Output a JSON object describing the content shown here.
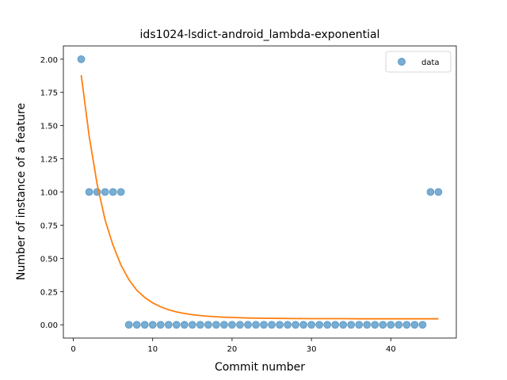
{
  "chart_data": {
    "type": "scatter",
    "title": "ids1024-lsdict-android_lambda-exponential",
    "xlabel": "Commit number",
    "ylabel": "Number of instance of a feature",
    "xlim": [
      -1.25,
      48.25
    ],
    "ylim": [
      -0.1,
      2.1
    ],
    "xticks": [
      0,
      10,
      20,
      30,
      40
    ],
    "yticks": [
      0.0,
      0.25,
      0.5,
      0.75,
      1.0,
      1.25,
      1.5,
      1.75,
      2.0
    ],
    "ytick_labels": [
      "0.00",
      "0.25",
      "0.50",
      "0.75",
      "1.00",
      "1.25",
      "1.50",
      "1.75",
      "2.00"
    ],
    "legend": {
      "position": "top-right",
      "entries": [
        "data"
      ]
    },
    "series": [
      {
        "name": "data",
        "kind": "scatter",
        "color": "#1f77b4",
        "x": [
          1,
          2,
          3,
          4,
          5,
          6,
          7,
          8,
          9,
          10,
          11,
          12,
          13,
          14,
          15,
          16,
          17,
          18,
          19,
          20,
          21,
          22,
          23,
          24,
          25,
          26,
          27,
          28,
          29,
          30,
          31,
          32,
          33,
          34,
          35,
          36,
          37,
          38,
          39,
          40,
          41,
          42,
          43,
          44,
          45,
          46
        ],
        "y": [
          2,
          1,
          1,
          1,
          1,
          1,
          0,
          0,
          0,
          0,
          0,
          0,
          0,
          0,
          0,
          0,
          0,
          0,
          0,
          0,
          0,
          0,
          0,
          0,
          0,
          0,
          0,
          0,
          0,
          0,
          0,
          0,
          0,
          0,
          0,
          0,
          0,
          0,
          0,
          0,
          0,
          0,
          0,
          0,
          1,
          1
        ]
      },
      {
        "kind": "line",
        "color": "#ff7f0e",
        "x": [
          1,
          2,
          3,
          4,
          5,
          6,
          7,
          8,
          9,
          10,
          11,
          12,
          13,
          14,
          15,
          16,
          17,
          18,
          19,
          20,
          22,
          24,
          26,
          28,
          30,
          32,
          34,
          36,
          38,
          40,
          42,
          44,
          46
        ],
        "y": [
          1.88,
          1.42,
          1.06,
          0.79,
          0.6,
          0.45,
          0.34,
          0.26,
          0.205,
          0.165,
          0.135,
          0.113,
          0.097,
          0.085,
          0.076,
          0.069,
          0.064,
          0.06,
          0.057,
          0.055,
          0.051,
          0.049,
          0.048,
          0.047,
          0.046,
          0.046,
          0.046,
          0.045,
          0.045,
          0.045,
          0.045,
          0.045,
          0.045
        ]
      }
    ]
  }
}
